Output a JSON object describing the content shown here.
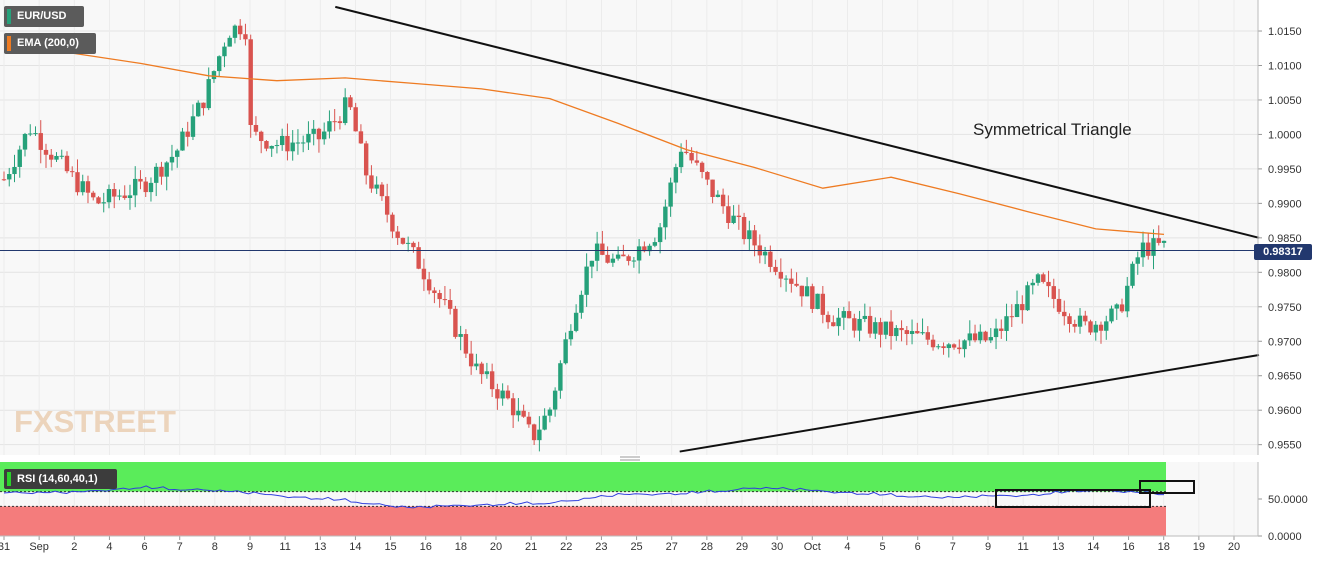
{
  "legends": {
    "symbol": "EUR/USD",
    "ema": "EMA (200,0)",
    "rsi": "RSI (14,60,40,1)"
  },
  "annotation": "Symmetrical Triangle",
  "watermark": "FXSTREET",
  "last_price_label": "0.98317",
  "colors": {
    "up": "#26a17a",
    "down": "#d9534f",
    "ema": "#ee7b22",
    "rsi_line": "#2f3fdc",
    "rsi_upper_zone": "#5aec5a",
    "rsi_lower_zone": "#f47c7c",
    "price_line": "#22386e"
  },
  "chart_data": [
    {
      "type": "candlestick",
      "title": "EUR/USD",
      "ylim": [
        0.9535,
        1.0195
      ],
      "y_ticks": [
        "1.0150",
        "1.0100",
        "1.0050",
        "1.0000",
        "0.9950",
        "0.9900",
        "0.9850",
        "0.9800",
        "0.9750",
        "0.9700",
        "0.9650",
        "0.9600",
        "0.9550"
      ],
      "x_ticks": [
        "31",
        "Sep",
        "2",
        "4",
        "6",
        "7",
        "8",
        "9",
        "11",
        "13",
        "14",
        "15",
        "16",
        "18",
        "20",
        "21",
        "22",
        "23",
        "25",
        "27",
        "28",
        "29",
        "30",
        "Oct",
        "4",
        "5",
        "6",
        "7",
        "9",
        "11",
        "13",
        "14",
        "16",
        "18",
        "19",
        "20"
      ],
      "last_price": 0.98317,
      "series": [
        {
          "name": "EMA (200,0)",
          "values": [
            1.013,
            1.0118,
            1.0103,
            1.0085,
            1.0078,
            1.0082,
            1.0074,
            1.0066,
            1.0052,
            1.0016,
            0.9978,
            0.9952,
            0.9922,
            0.9938,
            0.9914,
            0.9888,
            0.9863,
            0.9855
          ]
        }
      ],
      "trendlines": [
        {
          "from": [
            "13",
            1.0185
          ],
          "to": [
            "20",
            0.985
          ]
        },
        {
          "from": [
            "28",
            0.954
          ],
          "to": [
            "20",
            0.968
          ]
        }
      ],
      "annotations": [
        "Symmetrical Triangle"
      ]
    },
    {
      "type": "line",
      "title": "RSI (14,60,40,1)",
      "ylim": [
        0,
        100
      ],
      "y_ticks": [
        "50.0000",
        "0.0000"
      ],
      "levels": [
        60,
        40
      ],
      "series": [
        {
          "name": "RSI (14,60,40,1)",
          "values": [
            60,
            58,
            66,
            63,
            54,
            49,
            38,
            42,
            46,
            55,
            58,
            66,
            60,
            56,
            52,
            55,
            64,
            56
          ]
        }
      ]
    }
  ]
}
